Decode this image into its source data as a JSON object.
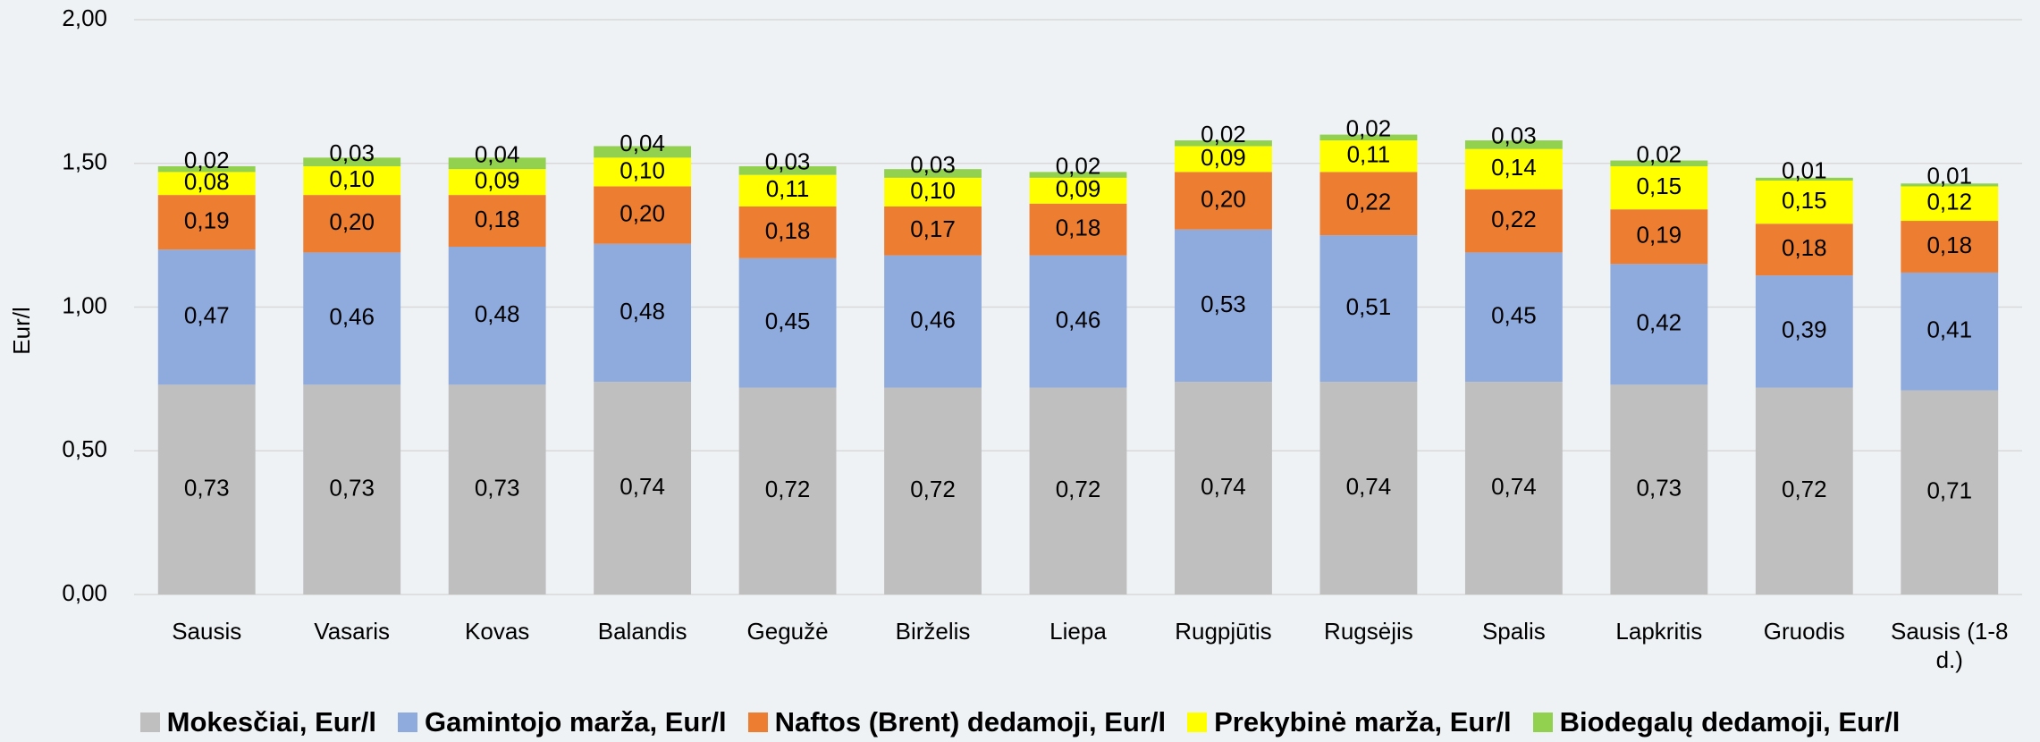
{
  "chart_data": {
    "type": "stacked_bar",
    "y_label": "Eur/l",
    "categories": [
      "Sausis",
      "Vasaris",
      "Kovas",
      "Balandis",
      "Gegužė",
      "Birželis",
      "Liepa",
      "Rugpjūtis",
      "Rugsėjis",
      "Spalis",
      "Lapkritis",
      "Gruodis",
      "Sausis (1-8 d.)"
    ],
    "ylim": [
      0,
      2
    ],
    "yticks": [
      {
        "value": 0,
        "label": "0,00"
      },
      {
        "value": 0.5,
        "label": "0,50"
      },
      {
        "value": 1,
        "label": "1,00"
      },
      {
        "value": 1.5,
        "label": "1,50"
      },
      {
        "value": 2,
        "label": "2,00"
      }
    ],
    "grid": true,
    "legend": "bottom",
    "series": [
      {
        "name": "Mokesčiai, Eur/l",
        "color": "#bfbfbf",
        "values": [
          0.73,
          0.73,
          0.73,
          0.74,
          0.72,
          0.72,
          0.72,
          0.74,
          0.74,
          0.74,
          0.73,
          0.72,
          0.71
        ],
        "value_labels": [
          "0,73",
          "0,73",
          "0,73",
          "0,74",
          "0,72",
          "0,72",
          "0,72",
          "0,74",
          "0,74",
          "0,74",
          "0,73",
          "0,72",
          "0,71"
        ]
      },
      {
        "name": "Gamintojo marža, Eur/l",
        "color": "#8faadc",
        "values": [
          0.47,
          0.46,
          0.48,
          0.48,
          0.45,
          0.46,
          0.46,
          0.53,
          0.51,
          0.45,
          0.42,
          0.39,
          0.41
        ],
        "value_labels": [
          "0,47",
          "0,46",
          "0,48",
          "0,48",
          "0,45",
          "0,46",
          "0,46",
          "0,53",
          "0,51",
          "0,45",
          "0,42",
          "0,39",
          "0,41"
        ]
      },
      {
        "name": "Naftos (Brent) dedamoji, Eur/l",
        "color": "#ed7d31",
        "values": [
          0.19,
          0.2,
          0.18,
          0.2,
          0.18,
          0.17,
          0.18,
          0.2,
          0.22,
          0.22,
          0.19,
          0.18,
          0.18
        ],
        "value_labels": [
          "0,19",
          "0,20",
          "0,18",
          "0,20",
          "0,18",
          "0,17",
          "0,18",
          "0,20",
          "0,22",
          "0,22",
          "0,19",
          "0,18",
          "0,18"
        ]
      },
      {
        "name": "Prekybinė marža, Eur/l",
        "color": "#ffff00",
        "values": [
          0.08,
          0.1,
          0.09,
          0.1,
          0.11,
          0.1,
          0.09,
          0.09,
          0.11,
          0.14,
          0.15,
          0.15,
          0.12
        ],
        "value_labels": [
          "0,08",
          "0,10",
          "0,09",
          "0,10",
          "0,11",
          "0,10",
          "0,09",
          "0,09",
          "0,11",
          "0,14",
          "0,15",
          "0,15",
          "0,12"
        ]
      },
      {
        "name": "Biodegalų dedamoji, Eur/l",
        "color": "#92d050",
        "values": [
          0.02,
          0.03,
          0.04,
          0.04,
          0.03,
          0.03,
          0.02,
          0.02,
          0.02,
          0.03,
          0.02,
          0.01,
          0.01
        ],
        "value_labels": [
          "0,02",
          "0,03",
          "0,04",
          "0,04",
          "0,03",
          "0,03",
          "0,02",
          "0,02",
          "0,02",
          "0,03",
          "0,02",
          "0,01",
          "0,01"
        ]
      }
    ]
  }
}
